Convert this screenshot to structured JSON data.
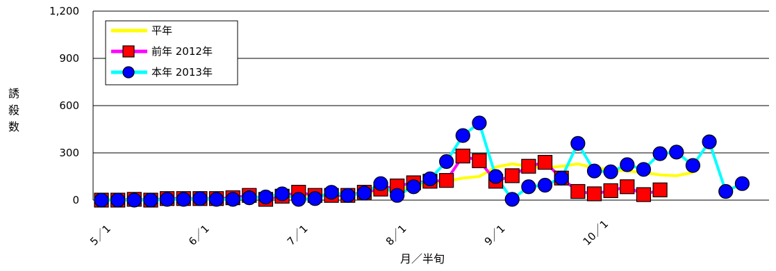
{
  "chart_data": {
    "type": "line",
    "title": "",
    "xlabel": "月／半旬",
    "ylabel": "誘殺数",
    "ylim": [
      0,
      1200
    ],
    "yticks": [
      "0",
      "300",
      "600",
      "900",
      "1,200"
    ],
    "x_tick_labels": [
      {
        "label": "5／1",
        "index": 0
      },
      {
        "label": "6／1",
        "index": 6
      },
      {
        "label": "7／1",
        "index": 12
      },
      {
        "label": "8／1",
        "index": 18
      },
      {
        "label": "9／1",
        "index": 24
      },
      {
        "label": "10／1",
        "index": 30
      }
    ],
    "n_positions": 42,
    "grid": "horizontal",
    "legend_position": "top-left",
    "series": [
      {
        "name": "平年",
        "color": "#ffff00",
        "marker": "none",
        "values": [
          5,
          5,
          5,
          5,
          6,
          8,
          10,
          12,
          15,
          18,
          22,
          25,
          28,
          32,
          35,
          40,
          45,
          55,
          70,
          85,
          100,
          120,
          140,
          150,
          210,
          230,
          215,
          205,
          215,
          230,
          205,
          195,
          185,
          175,
          160,
          155,
          175,
          null,
          null,
          null,
          null,
          null
        ]
      },
      {
        "name": "前年 2012年",
        "color": "#ff00ff",
        "marker": "square",
        "marker_fill": "#ff0000",
        "values": [
          0,
          0,
          5,
          0,
          10,
          10,
          10,
          10,
          15,
          30,
          5,
          25,
          50,
          30,
          30,
          30,
          50,
          70,
          90,
          110,
          120,
          125,
          280,
          250,
          120,
          155,
          215,
          240,
          140,
          55,
          40,
          60,
          85,
          35,
          65,
          null,
          null,
          null,
          null,
          null,
          null,
          null
        ]
      },
      {
        "name": "本年 2013年",
        "color": "#00ffff",
        "marker": "circle",
        "marker_fill": "#0000ff",
        "values": [
          0,
          0,
          0,
          0,
          5,
          5,
          10,
          5,
          5,
          15,
          20,
          40,
          5,
          10,
          50,
          30,
          45,
          105,
          30,
          85,
          135,
          245,
          410,
          490,
          150,
          5,
          85,
          95,
          140,
          360,
          185,
          180,
          225,
          195,
          295,
          305,
          220,
          370,
          55,
          105,
          null,
          null
        ]
      }
    ]
  }
}
